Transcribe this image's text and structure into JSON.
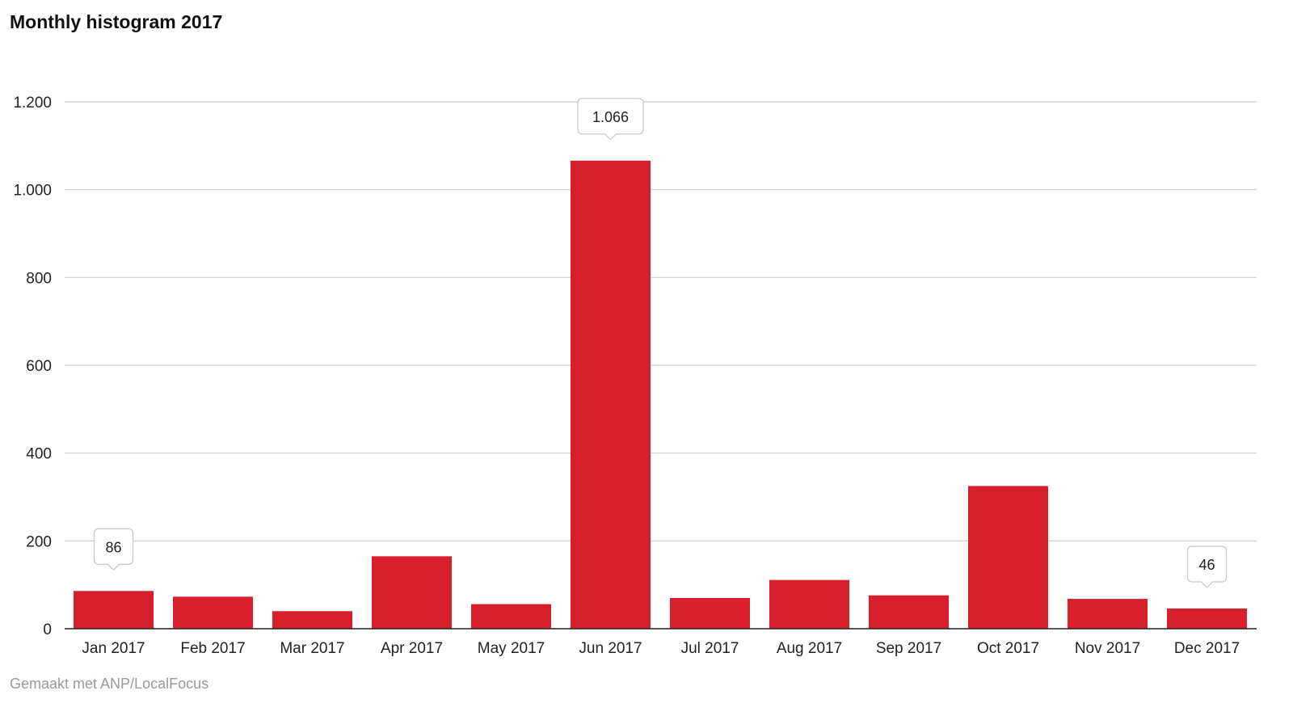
{
  "title": "Monthly histogram 2017",
  "footer": "Gemaakt met ANP/LocalFocus",
  "colors": {
    "bar": "#d7202c",
    "grid": "#cccccc",
    "axis": "#222222",
    "callout_border": "#c8c8c8"
  },
  "chart_data": {
    "type": "bar",
    "title": "Monthly histogram 2017",
    "xlabel": "",
    "ylabel": "",
    "categories": [
      "Jan 2017",
      "Feb 2017",
      "Mar 2017",
      "Apr 2017",
      "May 2017",
      "Jun 2017",
      "Jul 2017",
      "Aug 2017",
      "Sep 2017",
      "Oct 2017",
      "Nov 2017",
      "Dec 2017"
    ],
    "values": [
      86,
      73,
      40,
      165,
      56,
      1066,
      70,
      111,
      76,
      325,
      68,
      46
    ],
    "ylim": [
      0,
      1200
    ],
    "y_ticks": [
      0,
      200,
      400,
      600,
      800,
      1000,
      1200
    ],
    "y_tick_labels": [
      "0",
      "200",
      "400",
      "600",
      "800",
      "1.000",
      "1.200"
    ],
    "grid": true,
    "annotations": [
      {
        "category": "Jan 2017",
        "label": "86"
      },
      {
        "category": "Jun 2017",
        "label": "1.066"
      },
      {
        "category": "Dec 2017",
        "label": "46"
      }
    ]
  }
}
